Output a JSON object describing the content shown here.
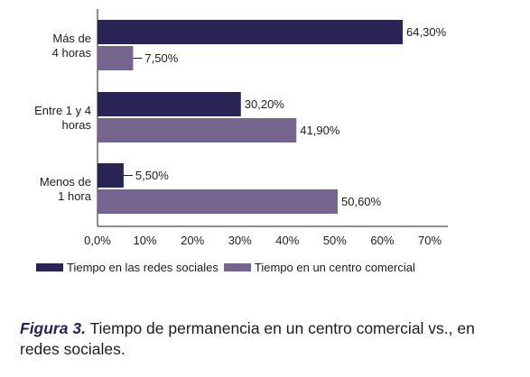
{
  "chart_data": {
    "type": "bar",
    "orientation": "horizontal",
    "categories": [
      {
        "line1": "Más de",
        "line2": "4 horas"
      },
      {
        "line1": "Entre 1 y 4",
        "line2": "horas"
      },
      {
        "line1": "Menos de",
        "line2": "1 hora"
      }
    ],
    "series": [
      {
        "name": "Tiempo en las redes sociales",
        "values": [
          64.3,
          30.2,
          5.5
        ],
        "labels": [
          "64,30%",
          "30,20%",
          "5,50%"
        ],
        "color": "#2a2454"
      },
      {
        "name": "Tiempo en un centro comercial",
        "values": [
          7.5,
          41.9,
          50.6
        ],
        "labels": [
          "7,50%",
          "41,90%",
          "50,60%"
        ],
        "color": "#76658f"
      }
    ],
    "xlim": [
      0,
      70
    ],
    "xticks": [
      "0,0%",
      "10%",
      "20%",
      "30%",
      "40%",
      "50%",
      "60%",
      "70%"
    ],
    "legend_position": "bottom",
    "grid": false
  },
  "caption": {
    "label": "Figura 3.",
    "text": " Tiempo de permanencia en un centro comercial vs., en redes sociales."
  }
}
